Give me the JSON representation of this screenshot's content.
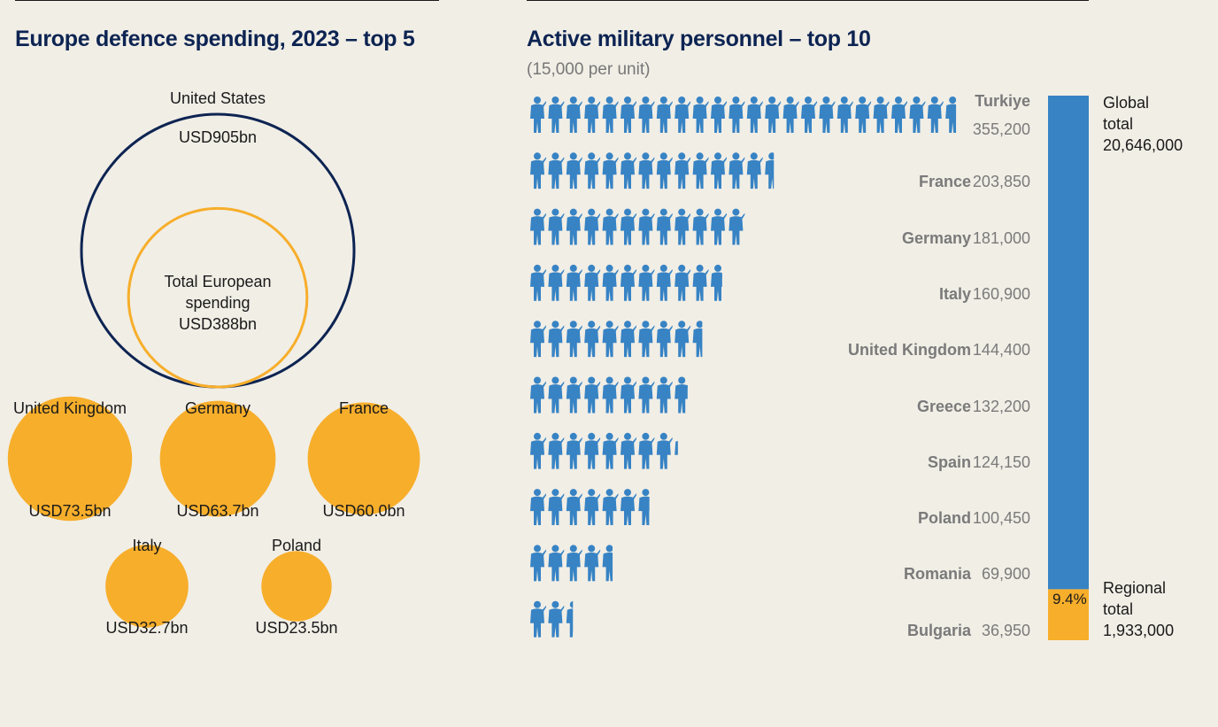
{
  "left_panel": {
    "title": "Europe defence spending, 2023 – top 5",
    "us_label": "United States",
    "us_value": "USD905bn",
    "europe_label": "Total European spending",
    "europe_value": "USD388bn"
  },
  "right_panel": {
    "title": "Active military personnel – top 10",
    "subtitle": "(15,000 per unit)",
    "global_label": "Global total",
    "global_value": "20,646,000",
    "regional_label": "Regional total",
    "regional_value": "1,933,000",
    "regional_share": "9.4%"
  },
  "colors": {
    "navy": "#0d2452",
    "orange": "#f7ae2b",
    "blue": "#3783c4",
    "background": "#f1eee6",
    "gray_text": "#7a7a7a"
  },
  "chart_data": [
    {
      "type": "bubble",
      "title": "Europe defence spending, 2023 – top 5",
      "unit": "USD bn",
      "reference": [
        {
          "name": "United States",
          "value": 905,
          "label": "USD905bn"
        },
        {
          "name": "Total European spending",
          "value": 388,
          "label": "USD388bn"
        }
      ],
      "categories": [
        "United Kingdom",
        "Germany",
        "France",
        "Italy",
        "Poland"
      ],
      "values": [
        73.5,
        63.7,
        60.0,
        32.7,
        23.5
      ],
      "value_labels": [
        "USD73.5bn",
        "USD63.7bn",
        "USD60.0bn",
        "USD32.7bn",
        "USD23.5bn"
      ]
    },
    {
      "type": "bar",
      "title": "Active military personnel – top 10",
      "subtitle": "(15,000 per unit)",
      "unit_per_icon": 15000,
      "categories": [
        "Turkiye",
        "France",
        "Germany",
        "Italy",
        "United Kingdom",
        "Greece",
        "Spain",
        "Poland",
        "Romania",
        "Bulgaria"
      ],
      "values": [
        355200,
        203850,
        181000,
        160900,
        144400,
        132200,
        124150,
        100450,
        69900,
        36950
      ],
      "value_labels": [
        "355,200",
        "203,850",
        "181,000",
        "160,900",
        "144,400",
        "132,200",
        "124,150",
        "100,450",
        "69,900",
        "36,950"
      ]
    },
    {
      "type": "bar",
      "stacked": true,
      "categories": [
        "Global total",
        "Regional total"
      ],
      "values": [
        20646000,
        1933000
      ],
      "value_labels": [
        "20,646,000",
        "1,933,000"
      ],
      "regional_share_label": "9.4%"
    }
  ]
}
